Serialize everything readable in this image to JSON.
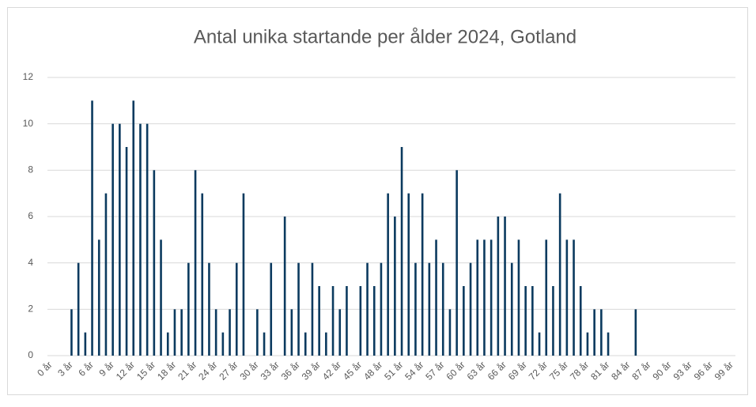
{
  "chart_data": {
    "type": "bar",
    "title": "Antal unika startande per ålder 2024, Gotland",
    "categories": [
      "0 år",
      null,
      null,
      "3 år",
      null,
      null,
      "6 år",
      null,
      null,
      "9 år",
      null,
      null,
      "12 år",
      null,
      null,
      "15 år",
      null,
      null,
      "18 år",
      null,
      null,
      "21 år",
      null,
      null,
      "24 år",
      null,
      null,
      "27 år",
      null,
      null,
      "30 år",
      null,
      null,
      "33 år",
      null,
      null,
      "36 år",
      null,
      null,
      "39 år",
      null,
      null,
      "42 år",
      null,
      null,
      "45 år",
      null,
      null,
      "48 år",
      null,
      null,
      "51 år",
      null,
      null,
      "54 år",
      null,
      null,
      "57 år",
      null,
      null,
      "60 år",
      null,
      null,
      "63 år",
      null,
      null,
      "66 år",
      null,
      null,
      "69 år",
      null,
      null,
      "72 år",
      null,
      null,
      "75 år",
      null,
      null,
      "78 år",
      null,
      null,
      "81 år",
      null,
      null,
      "84 år",
      null,
      null,
      "87 år",
      null,
      null,
      "90 år",
      null,
      null,
      "93 år",
      null,
      null,
      "96 år",
      null,
      null,
      "99 år"
    ],
    "values": [
      0,
      0,
      0,
      2,
      4,
      1,
      11,
      5,
      7,
      10,
      10,
      9,
      11,
      10,
      10,
      8,
      5,
      1,
      2,
      2,
      4,
      8,
      7,
      4,
      2,
      1,
      2,
      4,
      7,
      0,
      2,
      1,
      4,
      0,
      6,
      2,
      4,
      1,
      4,
      3,
      1,
      3,
      2,
      3,
      0,
      3,
      4,
      3,
      4,
      7,
      6,
      9,
      7,
      4,
      7,
      4,
      5,
      4,
      2,
      8,
      3,
      4,
      5,
      5,
      5,
      6,
      6,
      4,
      5,
      3,
      3,
      1,
      5,
      3,
      7,
      5,
      5,
      3,
      1,
      2,
      2,
      1,
      0,
      0,
      0,
      2,
      0,
      0,
      0,
      0,
      0,
      0,
      0,
      0,
      0,
      0,
      0,
      0,
      0,
      0
    ],
    "color": "#0b3a5f",
    "ylim": [
      0,
      12
    ],
    "yticks": [
      0,
      2,
      4,
      6,
      8,
      10,
      12
    ],
    "grid": true
  }
}
